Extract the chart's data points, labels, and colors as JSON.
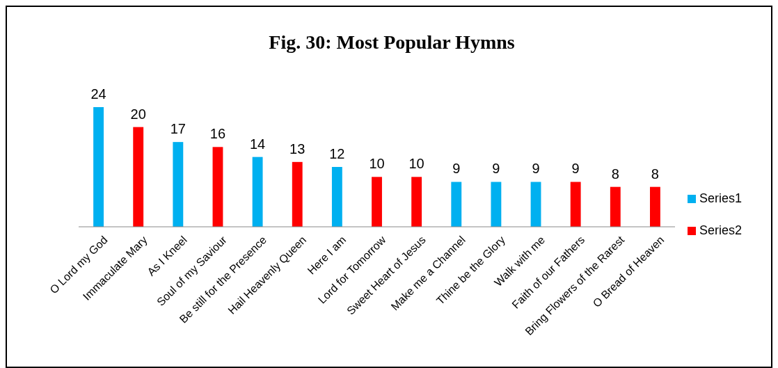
{
  "chart_data": {
    "type": "bar",
    "title": "Fig. 30: Most Popular Hymns",
    "categories": [
      "O Lord my God",
      "Immaculate Mary",
      "As I Kneel",
      "Soul of my Saviour",
      "Be still for the Presence",
      "Hail Heavenly Queen",
      "Here I am",
      "Lord for Tomorrow",
      "Sweet Heart of Jesus",
      "Make me a Channel",
      "Thine be the Glory",
      "Walk with me",
      "Faith of our Fathers",
      "Bring Flowers of the Rarest",
      "O Bread of Heaven"
    ],
    "stacked": true,
    "data_labels": true,
    "legend": "right",
    "grid": false,
    "series": [
      {
        "name": "Series1",
        "color": "#00b0f0",
        "values": [
          24,
          null,
          17,
          null,
          14,
          null,
          12,
          null,
          null,
          9,
          9,
          9,
          null,
          null,
          null
        ]
      },
      {
        "name": "Series2",
        "color": "#ff0000",
        "values": [
          null,
          20,
          null,
          16,
          null,
          13,
          null,
          10,
          10,
          null,
          null,
          null,
          9,
          8,
          8
        ]
      }
    ]
  }
}
